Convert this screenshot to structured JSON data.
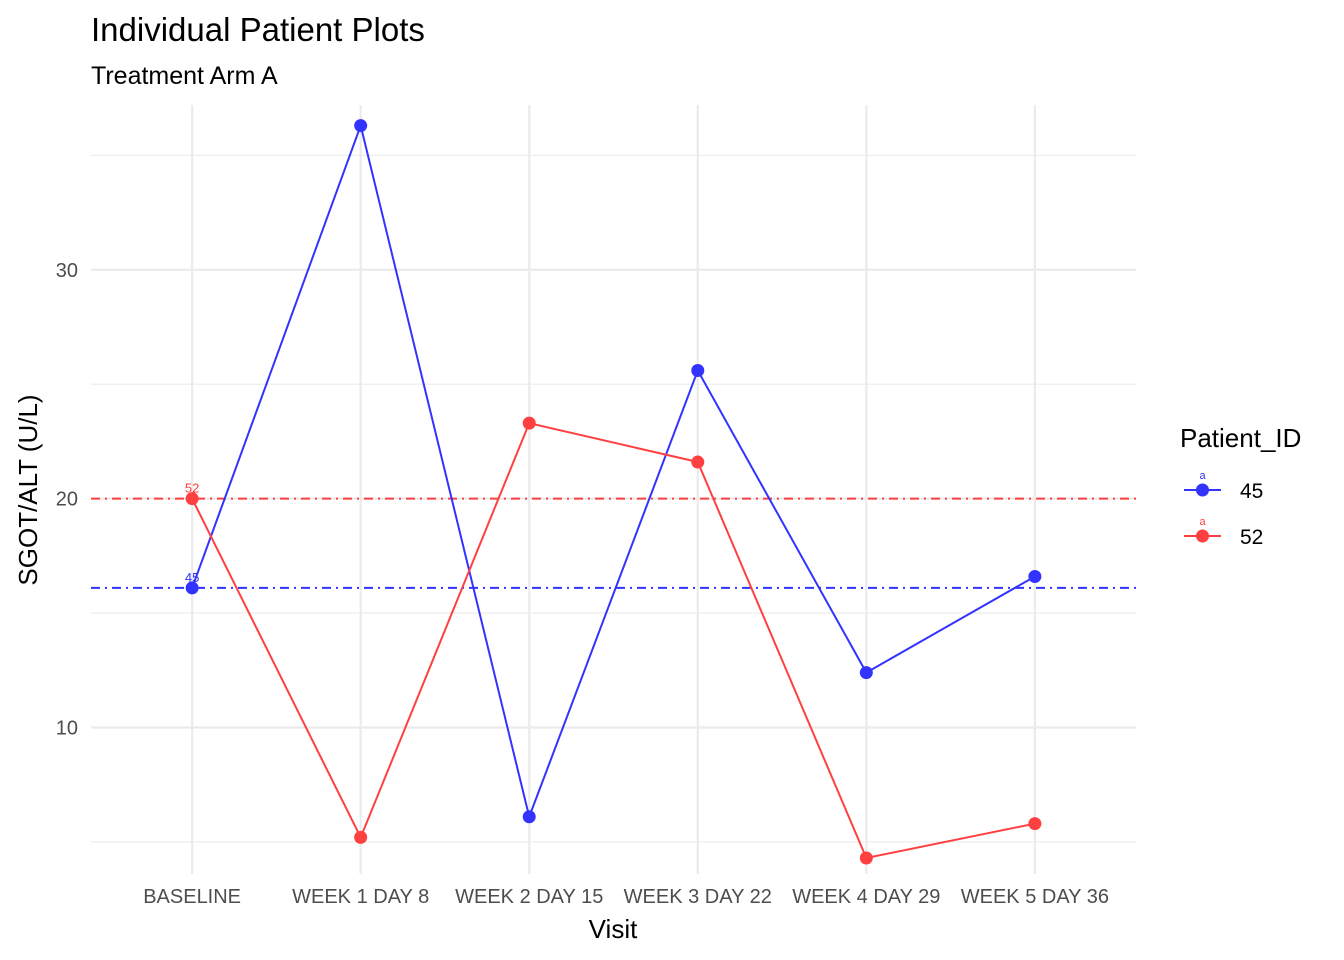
{
  "chart_data": {
    "type": "line",
    "title": "Individual Patient Plots",
    "subtitle": "Treatment Arm A",
    "xlabel": "Visit",
    "ylabel": "SGOT/ALT (U/L)",
    "categories": [
      "BASELINE",
      "WEEK 1 DAY 8",
      "WEEK 2 DAY 15",
      "WEEK 3 DAY 22",
      "WEEK 4 DAY 29",
      "WEEK 5 DAY 36"
    ],
    "ylim": [
      3.6,
      37.2
    ],
    "yticks": [
      10,
      20,
      30
    ],
    "grid": true,
    "legend": {
      "title": "Patient_ID",
      "position": "right",
      "key_glyph": "a"
    },
    "series": [
      {
        "name": "45",
        "color": "#3333ff",
        "values": [
          16.1,
          36.3,
          6.1,
          25.6,
          12.4,
          16.6
        ],
        "baseline": 16.1,
        "baseline_label": "45"
      },
      {
        "name": "52",
        "color": "#ff4040",
        "values": [
          20.0,
          5.2,
          23.3,
          21.6,
          4.3,
          5.8
        ],
        "baseline": 20.0,
        "baseline_label": "52"
      }
    ]
  }
}
